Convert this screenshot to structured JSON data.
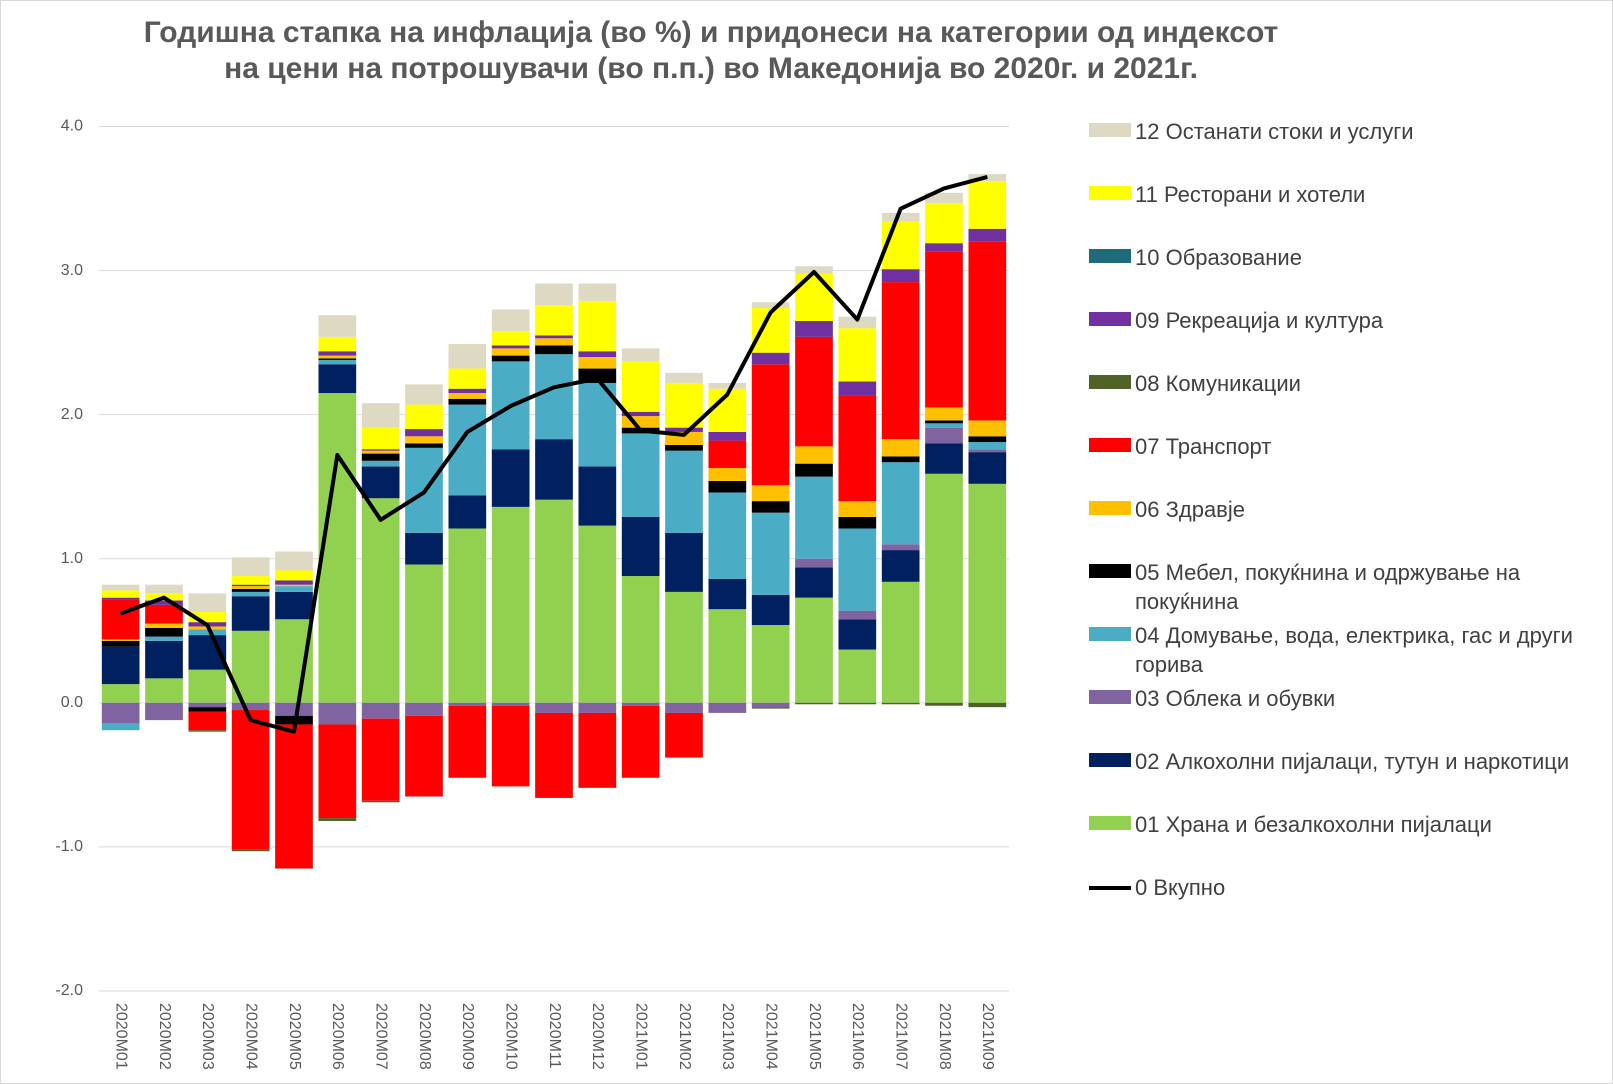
{
  "chart_data": {
    "type": "bar",
    "stacked": true,
    "title": "Годишна стапка на инфлација (во %) и придонеси на категории од индексот\nна цени на потрошувачи (во п.п.) во Македонија во 2020г. и 2021г.",
    "categories": [
      "2020M01",
      "2020M02",
      "2020M03",
      "2020M04",
      "2020M05",
      "2020M06",
      "2020M07",
      "2020M08",
      "2020M09",
      "2020M10",
      "2020M11",
      "2020M12",
      "2021M01",
      "2021M02",
      "2021M03",
      "2021M04",
      "2021M05",
      "2021M06",
      "2021M07",
      "2021M08",
      "2021M09"
    ],
    "ylim": [
      -2,
      4
    ],
    "yticks": [
      {
        "value": -2,
        "label": "-2.0"
      },
      {
        "value": -1,
        "label": "-1.0"
      },
      {
        "value": 0,
        "label": "0.0"
      },
      {
        "value": 1,
        "label": "1.0"
      },
      {
        "value": 2,
        "label": "2.0"
      },
      {
        "value": 3,
        "label": "3.0"
      },
      {
        "value": 4,
        "label": "4.0"
      }
    ],
    "grid": true,
    "series": [
      {
        "name": "01 Храна и безалкохолни пијалаци",
        "color": "#92d050",
        "values": [
          0.13,
          0.17,
          0.23,
          0.5,
          0.58,
          2.15,
          1.42,
          0.96,
          1.21,
          1.36,
          1.41,
          1.23,
          0.88,
          0.77,
          0.65,
          0.54,
          0.73,
          0.37,
          0.84,
          1.59,
          1.52
        ]
      },
      {
        "name": "02 Алкохолни пијалаци, тутун и наркотици",
        "color": "#002060",
        "values": [
          0.26,
          0.26,
          0.24,
          0.24,
          0.19,
          0.2,
          0.22,
          0.22,
          0.23,
          0.4,
          0.42,
          0.41,
          0.41,
          0.41,
          0.21,
          0.21,
          0.21,
          0.21,
          0.22,
          0.21,
          0.22
        ]
      },
      {
        "name": "03 Облека и обувки",
        "color": "#8064a2",
        "values": [
          -0.14,
          -0.12,
          -0.03,
          -0.05,
          -0.09,
          -0.15,
          -0.11,
          -0.09,
          -0.02,
          -0.02,
          -0.07,
          -0.07,
          -0.02,
          -0.07,
          -0.07,
          -0.03,
          0.06,
          0.06,
          0.04,
          0.11,
          0.02
        ]
      },
      {
        "name": "04 Домување, вода, електрика, гас и други горива",
        "color": "#4bacc6",
        "values": [
          -0.05,
          0.03,
          0.04,
          0.03,
          0.04,
          0.03,
          0.04,
          0.59,
          0.63,
          0.61,
          0.59,
          0.58,
          0.58,
          0.57,
          0.6,
          0.57,
          0.57,
          0.57,
          0.57,
          0.03,
          0.05
        ]
      },
      {
        "name": "05 Мебел, покуќнина и одржување на покуќнина",
        "color": "#000000",
        "values": [
          0.04,
          0.06,
          -0.03,
          0.02,
          -0.06,
          0.01,
          0.05,
          0.03,
          0.04,
          0.04,
          0.06,
          0.1,
          0.04,
          0.04,
          0.08,
          0.08,
          0.09,
          0.08,
          0.04,
          0.02,
          0.04
        ]
      },
      {
        "name": "06 Здравје",
        "color": "#ffc000",
        "values": [
          0.01,
          0.03,
          0.02,
          0.02,
          0.01,
          0.02,
          0.02,
          0.05,
          0.04,
          0.05,
          0.05,
          0.08,
          0.08,
          0.09,
          0.09,
          0.11,
          0.12,
          0.11,
          0.12,
          0.09,
          0.11
        ]
      },
      {
        "name": "07 Транспорт",
        "color": "#ff0000",
        "values": [
          0.28,
          0.13,
          -0.13,
          -0.97,
          -1.0,
          -0.65,
          -0.57,
          -0.56,
          -0.5,
          -0.56,
          -0.59,
          -0.52,
          -0.5,
          -0.31,
          0.19,
          0.84,
          0.76,
          0.73,
          1.09,
          1.08,
          1.24
        ]
      },
      {
        "name": "08 Комуникации",
        "color": "#4f6228",
        "values": [
          0,
          0,
          -0.01,
          -0.01,
          0,
          -0.02,
          -0.01,
          0,
          0,
          0,
          0,
          0,
          0,
          0,
          0,
          -0.01,
          -0.01,
          -0.01,
          -0.01,
          -0.02,
          -0.03
        ]
      },
      {
        "name": "09 Рекреација и култура",
        "color": "#7030a0",
        "values": [
          0.01,
          0.03,
          0.03,
          0.01,
          0.03,
          0.03,
          0.01,
          0.05,
          0.03,
          0.02,
          0.02,
          0.04,
          0.03,
          0.03,
          0.06,
          0.08,
          0.11,
          0.1,
          0.09,
          0.06,
          0.09
        ]
      },
      {
        "name": "10 Образование",
        "color": "#1f6b7a",
        "values": [
          0,
          0,
          0,
          0,
          0,
          0,
          0,
          0,
          0,
          0,
          0,
          0,
          0,
          0,
          0,
          0,
          0,
          0,
          0,
          0,
          0
        ]
      },
      {
        "name": "11 Ресторани и хотели",
        "color": "#ffff00",
        "values": [
          0.05,
          0.05,
          0.07,
          0.06,
          0.07,
          0.1,
          0.15,
          0.17,
          0.14,
          0.1,
          0.21,
          0.35,
          0.35,
          0.31,
          0.3,
          0.31,
          0.33,
          0.37,
          0.33,
          0.28,
          0.33
        ]
      },
      {
        "name": "12 Останати стоки и услуги",
        "color": "#ddd9c3",
        "values": [
          0.04,
          0.06,
          0.13,
          0.13,
          0.13,
          0.15,
          0.17,
          0.14,
          0.17,
          0.15,
          0.15,
          0.12,
          0.09,
          0.07,
          0.04,
          0.04,
          0.05,
          0.08,
          0.06,
          0.07,
          0.05
        ]
      },
      {
        "name": "0 Вкупно",
        "type": "line",
        "color": "#000000",
        "values": [
          0.62,
          0.73,
          0.54,
          -0.12,
          -0.2,
          1.72,
          1.27,
          1.46,
          1.88,
          2.06,
          2.19,
          2.25,
          1.89,
          1.86,
          2.14,
          2.71,
          2.99,
          2.66,
          3.43,
          3.57,
          3.65
        ]
      }
    ]
  }
}
